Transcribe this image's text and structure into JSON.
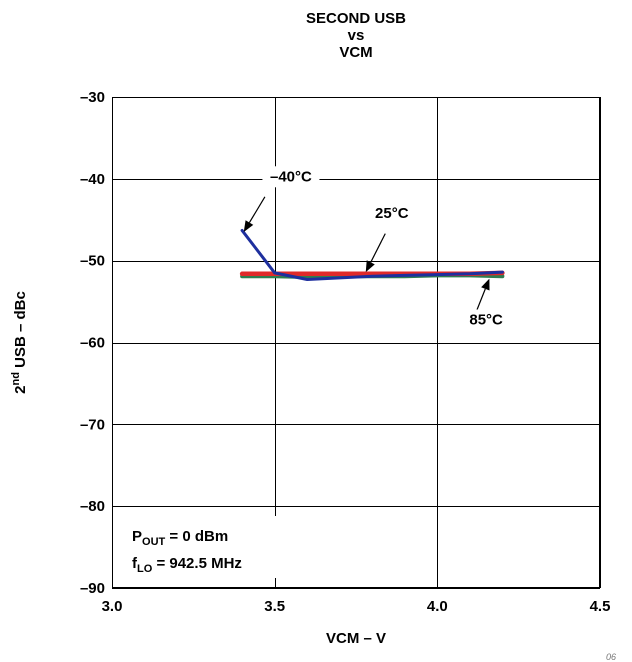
{
  "chart_data": {
    "type": "line",
    "title": [
      "SECOND USB",
      "vs",
      "VCM"
    ],
    "xlabel": "VCM – V",
    "ylabel": {
      "prefix": "2",
      "superscript": "nd",
      "rest": " USB – dBc"
    },
    "xlim": [
      3.0,
      4.5
    ],
    "ylim": [
      -90,
      -30
    ],
    "x_ticks": [
      {
        "value": 3.0,
        "label": "3.0"
      },
      {
        "value": 3.5,
        "label": "3.5"
      },
      {
        "value": 4.0,
        "label": "4.0"
      },
      {
        "value": 4.5,
        "label": "4.5"
      }
    ],
    "y_ticks": [
      {
        "value": -30,
        "label": "–30"
      },
      {
        "value": -40,
        "label": "–40"
      },
      {
        "value": -50,
        "label": "–50"
      },
      {
        "value": -60,
        "label": "–60"
      },
      {
        "value": -70,
        "label": "–70"
      },
      {
        "value": -80,
        "label": "–80"
      },
      {
        "value": -90,
        "label": "–90"
      }
    ],
    "grid": true,
    "series": [
      {
        "name": "85°C",
        "color": "#2e7d4f",
        "x": [
          3.4,
          3.5,
          3.6,
          3.7,
          3.8,
          3.9,
          4.0,
          4.1,
          4.2
        ],
        "y": [
          -51.9,
          -51.9,
          -52.0,
          -51.9,
          -51.9,
          -51.9,
          -51.8,
          -51.8,
          -51.9
        ]
      },
      {
        "name": "25°C",
        "color": "#e02a2a",
        "x": [
          3.4,
          3.5,
          3.6,
          3.7,
          3.8,
          3.9,
          4.0,
          4.1,
          4.2
        ],
        "y": [
          -51.6,
          -51.6,
          -51.6,
          -51.6,
          -51.6,
          -51.6,
          -51.6,
          -51.6,
          -51.5
        ]
      },
      {
        "name": "–40°C",
        "color": "#1e2f9e",
        "x": [
          3.4,
          3.5,
          3.6,
          3.7,
          3.8,
          3.9,
          4.0,
          4.1,
          4.2
        ],
        "y": [
          -46.3,
          -51.5,
          -52.3,
          -52.1,
          -51.9,
          -51.8,
          -51.7,
          -51.6,
          -51.4
        ]
      }
    ],
    "annotations": [
      {
        "text": "–40°C",
        "label_at": [
          3.55,
          -40.3
        ],
        "arrow_from": [
          3.47,
          -42.2
        ],
        "arrow_to": [
          3.405,
          -46.5
        ]
      },
      {
        "text": "25°C",
        "label_at": [
          3.86,
          -44.8
        ],
        "arrow_from": [
          3.84,
          -46.7
        ],
        "arrow_to": [
          3.78,
          -51.4
        ]
      },
      {
        "text": "85°C",
        "label_at": [
          4.15,
          -57.8
        ],
        "arrow_from": [
          4.12,
          -56.2
        ],
        "arrow_to": [
          4.16,
          -52.2
        ]
      }
    ],
    "conditions": {
      "pout": {
        "main": "P",
        "sub": "OUT",
        "rest": " = 0 dBm"
      },
      "flo": {
        "main": "f",
        "sub": "LO",
        "rest": " = 942.5 MHz"
      }
    }
  }
}
